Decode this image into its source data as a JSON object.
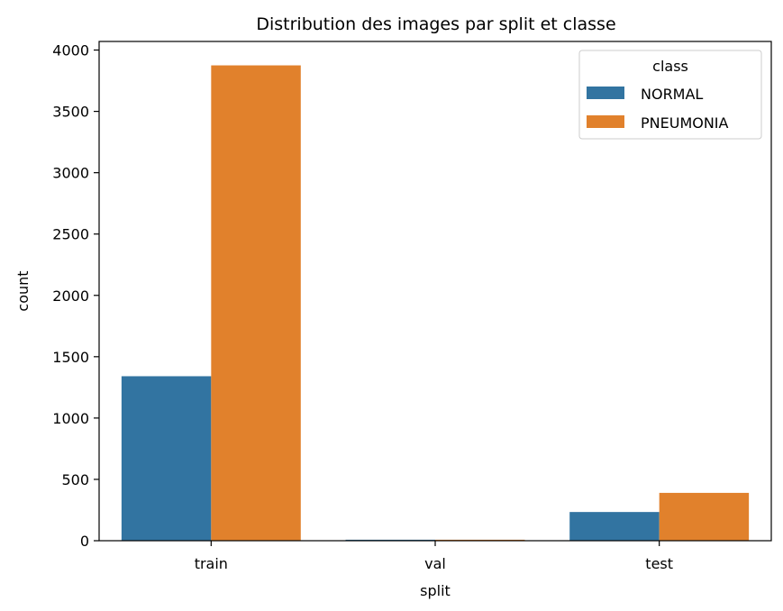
{
  "chart_data": {
    "type": "bar",
    "title": "Distribution des images par split et classe",
    "xlabel": "split",
    "ylabel": "count",
    "categories": [
      "train",
      "val",
      "test"
    ],
    "series": [
      {
        "name": "NORMAL",
        "color": "#3274a1",
        "values": [
          1341,
          8,
          234
        ]
      },
      {
        "name": "PNEUMONIA",
        "color": "#e1812c",
        "values": [
          3875,
          8,
          390
        ]
      }
    ],
    "ylim": [
      0,
      4070
    ],
    "yticks": [
      0,
      500,
      1000,
      1500,
      2000,
      2500,
      3000,
      3500,
      4000
    ],
    "grid": false,
    "legend": {
      "title": "class",
      "placement": "top-right"
    }
  }
}
